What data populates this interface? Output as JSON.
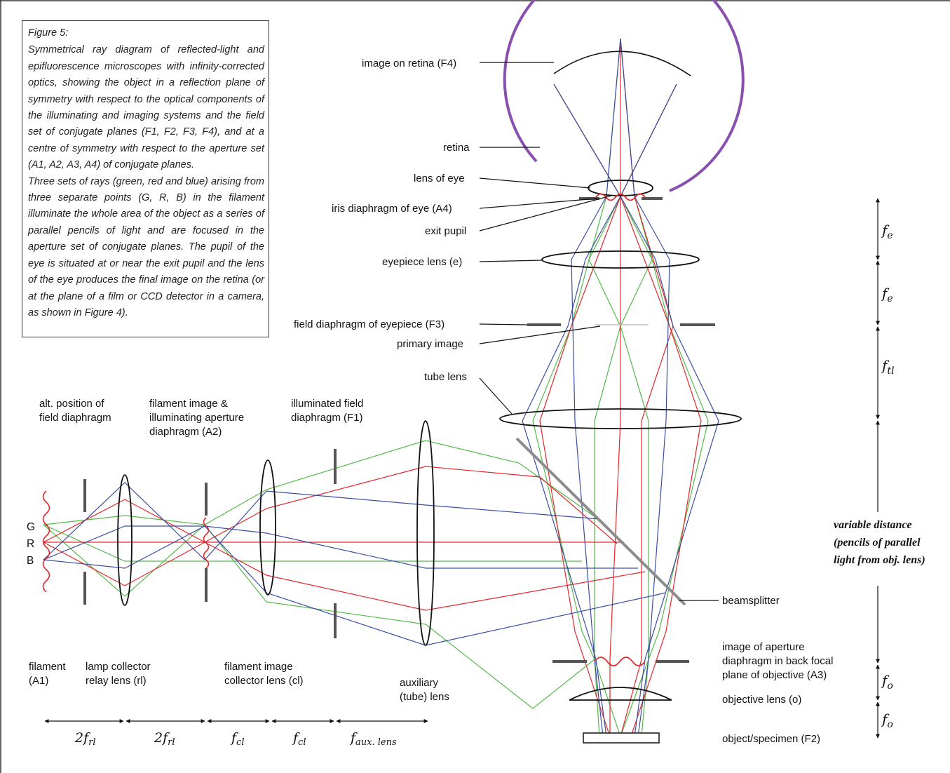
{
  "figure": {
    "title": "Figure 5:",
    "caption_p1": "Symmetrical ray diagram of reflected-light and epifluorescence microscopes with infinity-corrected optics, showing the object in a reflection plane of symmetry with respect to the optical components of the illuminating and imaging systems and the field set of conjugate planes (F1, F2, F3, F4), and at a centre of symmetry with respect to the aperture set (A1, A2, A3, A4) of conjugate planes.",
    "caption_p2": "Three sets of rays (green, red and blue) arising from three separate points (G, R, B) in the filament illuminate the whole area of the object as a series of parallel pencils of light and are focused in the aperture set of conjugate planes. The pupil of the eye is situated at or near the exit pupil and the lens of the eye produces the final image on the retina (or at the plane of a film or CCD detector in a camera, as shown in Figure 4)."
  },
  "colors": {
    "green": "#55b84a",
    "red": "#e5262b",
    "blue": "#3a4fa3",
    "retina": "#8a50b0",
    "beamsplitter": "#8c8c8c",
    "line": "#111111"
  },
  "points": {
    "g": "G",
    "r": "R",
    "b": "B"
  },
  "labels": {
    "image_on_retina": "image on retina (F4)",
    "retina": "retina",
    "lens_of_eye": "lens of eye",
    "iris_diaphragm": "iris diaphragm of eye (A4)",
    "exit_pupil": "exit pupil",
    "eyepiece_lens": "eyepiece lens (e)",
    "field_diaphragm_eyepiece": "field diaphragm of eyepiece (F3)",
    "primary_image": "primary image",
    "tube_lens": "tube lens",
    "alt_position_1": "alt. position of",
    "alt_position_2": "field diaphragm",
    "filament_image_1": "filament image &",
    "filament_image_2": "illuminating aperture",
    "filament_image_3": "diaphragm (A2)",
    "illuminated_field_1": "illuminated field",
    "illuminated_field_2": "diaphragm (F1)",
    "variable_1": "variable distance",
    "variable_2": "(pencils of parallel",
    "variable_3": "light from obj. lens)",
    "beamsplitter": "beamsplitter",
    "image_aperture_1": "image of aperture",
    "image_aperture_2": "diaphragm in back focal",
    "image_aperture_3": "plane of objective (A3)",
    "objective_lens": "objective lens (o)",
    "object_specimen": "object/specimen (F2)",
    "filament_1": "filament",
    "filament_2": "(A1)",
    "lamp_collector_1": "lamp collector",
    "lamp_collector_2": "relay lens (rl)",
    "filament_collector_1": "filament image",
    "filament_collector_2": "collector lens (cl)",
    "auxiliary_1": "auxiliary",
    "auxiliary_2": "(tube) lens"
  },
  "dims": {
    "f": "f",
    "e": "e",
    "tl": "tl",
    "o": "o",
    "two": "2",
    "rl": "rl",
    "cl": "cl",
    "aux": "aux. lens"
  }
}
